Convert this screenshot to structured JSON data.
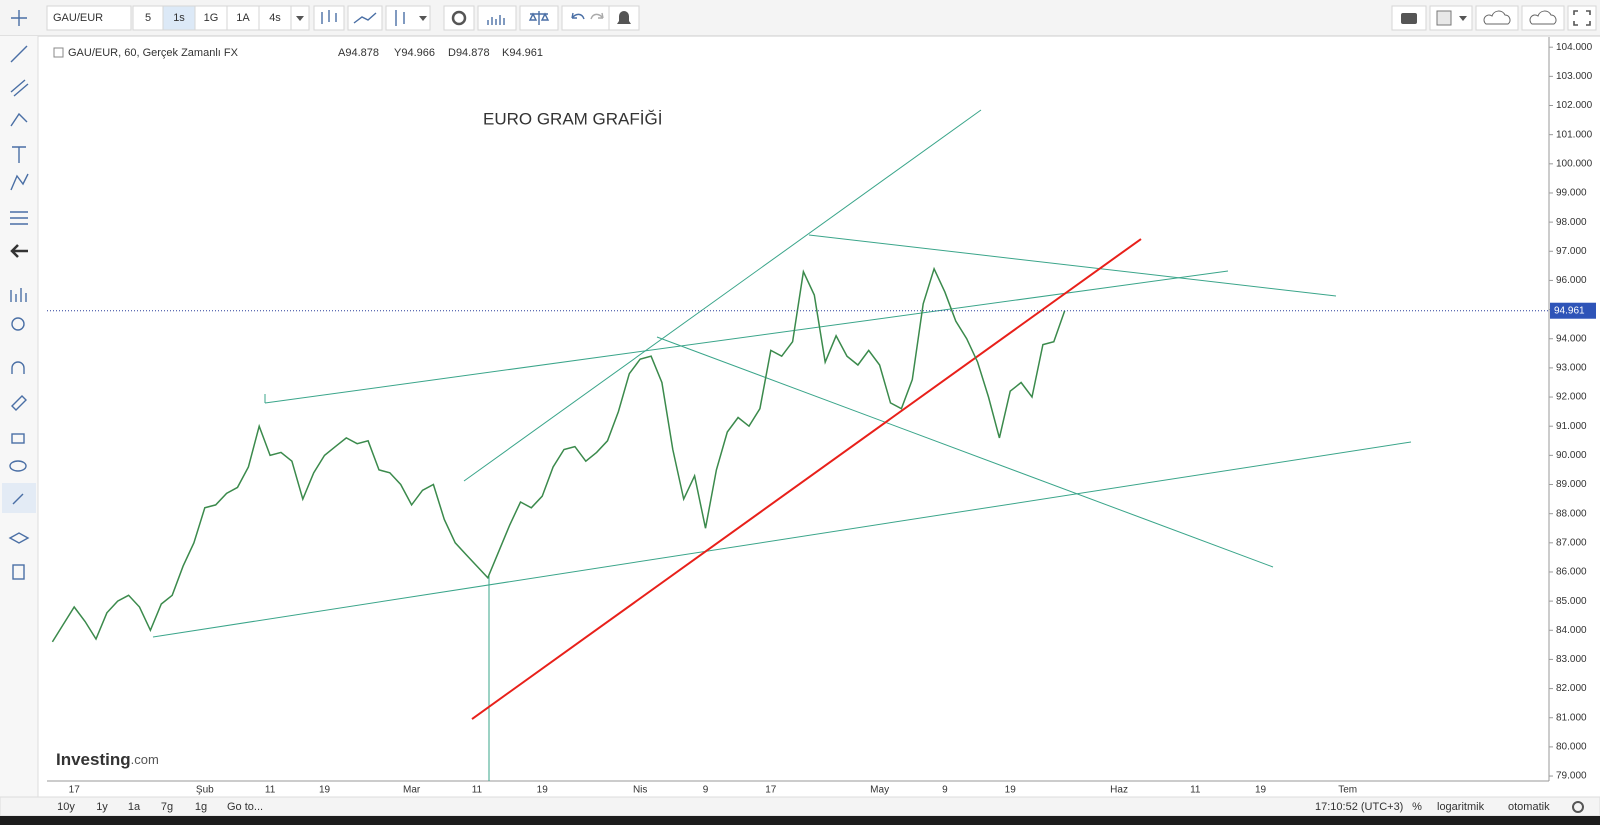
{
  "toolbar": {
    "symbol": "GAU/EUR",
    "intervals": [
      "5",
      "1s",
      "1G",
      "1A",
      "4s"
    ]
  },
  "legend": {
    "title": "GAU/EUR, 60, Gerçek Zamanlı FX",
    "ohlc": [
      "A94.878",
      "Y94.966",
      "D94.878",
      "K94.961"
    ]
  },
  "watermark": {
    "brand": "Investing",
    "domain": ".com"
  },
  "bottom_bar": {
    "ranges": [
      "10y",
      "1y",
      "1a",
      "7g",
      "1g"
    ],
    "goto": "Go to...",
    "time": "17:10:52 (UTC+3)",
    "options": [
      "%",
      "logaritmik",
      "otomatik"
    ]
  },
  "chart_data": {
    "type": "line",
    "title": "EURO GRAM GRAFİĞİ",
    "color": "#3b8a4c",
    "categories": [
      null,
      null,
      "17",
      null,
      null,
      null,
      null,
      null,
      null,
      null,
      null,
      null,
      null,
      null,
      "Şub",
      null,
      null,
      null,
      null,
      null,
      "11",
      null,
      null,
      null,
      null,
      "19",
      null,
      null,
      null,
      null,
      null,
      null,
      null,
      "Mar",
      null,
      null,
      null,
      null,
      null,
      "11",
      null,
      null,
      null,
      null,
      null,
      "19",
      null,
      null,
      null,
      null,
      null,
      null,
      null,
      null,
      "Nis",
      null,
      null,
      null,
      null,
      null,
      "9",
      null,
      null,
      null,
      null,
      null,
      "17",
      null,
      null,
      null,
      null,
      null,
      null,
      null,
      null,
      null,
      "May",
      null,
      null,
      null,
      null,
      null,
      "9",
      null,
      null,
      null,
      null,
      null,
      "19",
      null,
      null,
      null,
      null,
      null,
      null,
      null,
      null,
      null,
      "Haz",
      null,
      null,
      null,
      null,
      null,
      null,
      "11",
      null,
      null,
      null,
      null,
      null,
      "19",
      null,
      null,
      null,
      null,
      null,
      null,
      null,
      "Tem",
      null,
      null,
      null,
      null,
      null,
      null,
      null,
      null,
      null,
      null,
      null,
      null,
      null,
      null,
      null,
      null,
      null,
      null
    ],
    "values": [
      83.6,
      84.2,
      84.8,
      84.3,
      83.7,
      84.6,
      85.0,
      85.2,
      84.8,
      84.0,
      84.9,
      85.2,
      86.2,
      87.0,
      88.2,
      88.3,
      88.7,
      88.9,
      89.6,
      91.0,
      90.0,
      90.1,
      89.8,
      88.5,
      89.4,
      90.0,
      90.3,
      90.6,
      90.4,
      90.5,
      89.5,
      89.4,
      89.0,
      88.3,
      88.8,
      89.0,
      87.8,
      87.0,
      86.6,
      86.2,
      85.8,
      86.7,
      87.6,
      88.4,
      88.2,
      88.6,
      89.6,
      90.2,
      90.3,
      89.8,
      90.1,
      90.5,
      91.5,
      92.8,
      93.3,
      93.4,
      92.5,
      90.2,
      88.5,
      89.3,
      87.5,
      89.5,
      90.8,
      91.3,
      91.0,
      91.6,
      93.6,
      93.4,
      93.9,
      96.3,
      95.5,
      93.2,
      94.1,
      93.4,
      93.1,
      93.6,
      93.1,
      91.8,
      91.6,
      92.6,
      95.2,
      96.4,
      95.6,
      94.6,
      94.0,
      93.2,
      92.0,
      90.6,
      92.2,
      92.5,
      92.0,
      93.8,
      93.9,
      94.961,
      null,
      null,
      null,
      null,
      null,
      null,
      null,
      null,
      null,
      null,
      null,
      null,
      null,
      null,
      null,
      null,
      null,
      null,
      null,
      null,
      null,
      null,
      null,
      null,
      null,
      null,
      null,
      null,
      null,
      null,
      null,
      null,
      null,
      null,
      null,
      null,
      null,
      null,
      null,
      null,
      null,
      null,
      null,
      null
    ],
    "last_value": {
      "value": 94.961,
      "label": "94.961"
    },
    "ylim": [
      78.83,
      104.35
    ],
    "yticks": [
      {
        "value": 79,
        "label": "79.000"
      },
      {
        "value": 80,
        "label": "80.000"
      },
      {
        "value": 81,
        "label": "81.000"
      },
      {
        "value": 82,
        "label": "82.000"
      },
      {
        "value": 83,
        "label": "83.000"
      },
      {
        "value": 84,
        "label": "84.000"
      },
      {
        "value": 85,
        "label": "85.000"
      },
      {
        "value": 86,
        "label": "86.000"
      },
      {
        "value": 87,
        "label": "87.000"
      },
      {
        "value": 88,
        "label": "88.000"
      },
      {
        "value": 89,
        "label": "89.000"
      },
      {
        "value": 90,
        "label": "90.000"
      },
      {
        "value": 91,
        "label": "91.000"
      },
      {
        "value": 92,
        "label": "92.000"
      },
      {
        "value": 93,
        "label": "93.000"
      },
      {
        "value": 94,
        "label": "94.000"
      },
      {
        "value": 95,
        "label": "95.000"
      },
      {
        "value": 96,
        "label": "96.000"
      },
      {
        "value": 97,
        "label": "97.000"
      },
      {
        "value": 98,
        "label": "98.000"
      },
      {
        "value": 99,
        "label": "99.000"
      },
      {
        "value": 100,
        "label": "100.000"
      },
      {
        "value": 101,
        "label": "101.000"
      },
      {
        "value": 102,
        "label": "102.000"
      },
      {
        "value": 103,
        "label": "103.000"
      },
      {
        "value": 104,
        "label": "104.000"
      }
    ],
    "grid": false
  }
}
